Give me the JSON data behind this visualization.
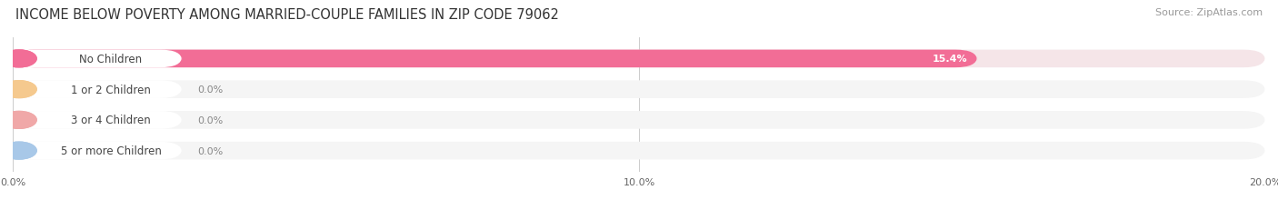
{
  "title": "INCOME BELOW POVERTY AMONG MARRIED-COUPLE FAMILIES IN ZIP CODE 79062",
  "source": "Source: ZipAtlas.com",
  "categories": [
    "No Children",
    "1 or 2 Children",
    "3 or 4 Children",
    "5 or more Children"
  ],
  "values": [
    15.4,
    0.0,
    0.0,
    0.0
  ],
  "bar_colors": [
    "#f26d96",
    "#f5c98e",
    "#f0a8a8",
    "#a8c8e8"
  ],
  "bar_bg_colors": [
    "#f5e5e8",
    "#f5f5f5",
    "#f5f5f5",
    "#f5f5f5"
  ],
  "label_left_colors": [
    "#f26d96",
    "#f5c98e",
    "#f0a8a8",
    "#a8c8e8"
  ],
  "xlim": [
    0,
    20.0
  ],
  "xticks": [
    0.0,
    10.0,
    20.0
  ],
  "xtick_labels": [
    "0.0%",
    "10.0%",
    "20.0%"
  ],
  "title_fontsize": 10.5,
  "source_fontsize": 8,
  "label_fontsize": 8.5,
  "value_fontsize": 8,
  "tick_fontsize": 8,
  "background_color": "#ffffff",
  "bar_height": 0.58,
  "grid_color": "#cccccc",
  "value_label_15": "15.4%",
  "value_label_0": "0.0%"
}
